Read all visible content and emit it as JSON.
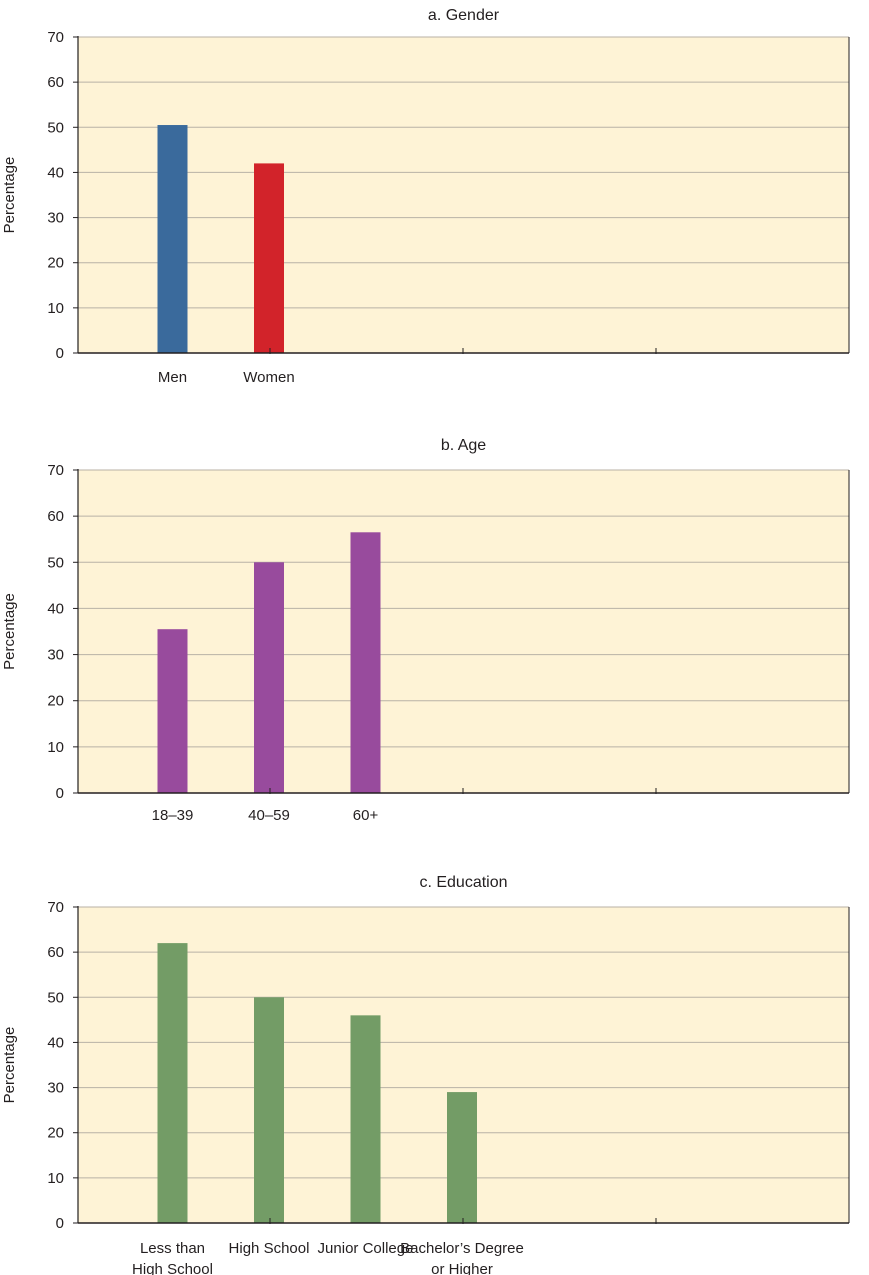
{
  "chart_data": [
    {
      "type": "bar",
      "title": "a. Gender",
      "ylabel": "Percentage",
      "xlabel": "",
      "ylim": [
        0,
        70
      ],
      "yticks": [
        "0",
        "10",
        "20",
        "30",
        "40",
        "50",
        "60",
        "70"
      ],
      "grid": true,
      "categories": [
        [
          "Men"
        ],
        [
          "Women"
        ]
      ],
      "values": [
        50.5,
        42
      ],
      "colors": [
        "#3a6a9c",
        "#d2232a"
      ]
    },
    {
      "type": "bar",
      "title": "b. Age",
      "ylabel": "Percentage",
      "xlabel": "",
      "ylim": [
        0,
        70
      ],
      "yticks": [
        "0",
        "10",
        "20",
        "30",
        "40",
        "50",
        "60",
        "70"
      ],
      "grid": true,
      "categories": [
        [
          "18–39"
        ],
        [
          "40–59"
        ],
        [
          "60+"
        ]
      ],
      "values": [
        35.5,
        50,
        56.5
      ],
      "colors": [
        "#984b9d",
        "#984b9d",
        "#984b9d"
      ]
    },
    {
      "type": "bar",
      "title": "c. Education",
      "ylabel": "Percentage",
      "xlabel": "",
      "ylim": [
        0,
        70
      ],
      "yticks": [
        "0",
        "10",
        "20",
        "30",
        "40",
        "50",
        "60",
        "70"
      ],
      "grid": true,
      "categories": [
        [
          "Less than",
          "High School"
        ],
        [
          "High School"
        ],
        [
          "Junior College"
        ],
        [
          "Bachelor’s Degree",
          "or Higher"
        ]
      ],
      "values": [
        62,
        50,
        46,
        29
      ],
      "colors": [
        "#739c66",
        "#739c66",
        "#739c66",
        "#739c66"
      ]
    }
  ],
  "style": {
    "plot_background": "#fef3d6",
    "grid_color": "#b8b2a6",
    "axis_color": "#231f20"
  }
}
